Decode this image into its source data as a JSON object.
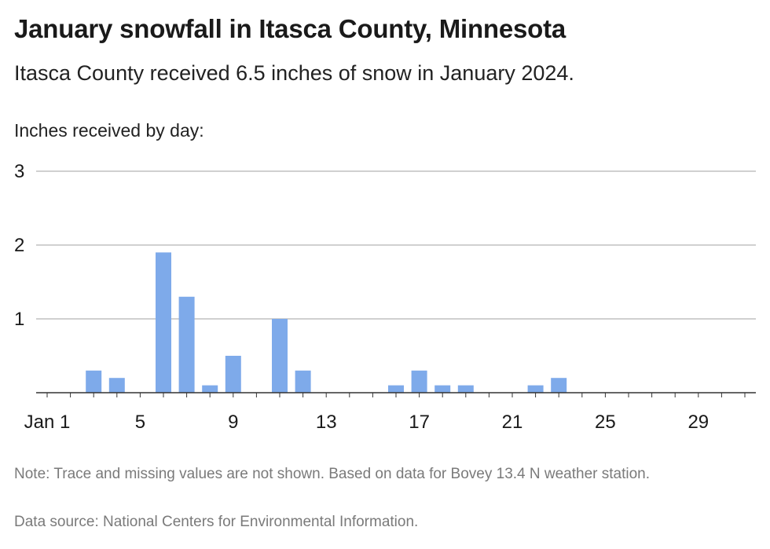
{
  "header": {
    "title": "January snowfall in Itasca County, Minnesota",
    "subtitle": "Itasca County received 6.5 inches of snow in January 2024."
  },
  "footer": {
    "note": "Note: Trace and missing values are not shown. Based on data for Bovey 13.4 N weather station.",
    "source": "Data source: National Centers for Environmental Information."
  },
  "colors": {
    "bar": "#7eaaea",
    "grid": "#b3b3b3",
    "axis": "#333333"
  },
  "chart_data": {
    "type": "bar",
    "title": "January snowfall in Itasca County, Minnesota",
    "subtitle": "Itasca County received 6.5 inches of snow in January 2024.",
    "ylabel": "Inches received by day:",
    "xlabel": "",
    "ylim": [
      0,
      3
    ],
    "xlim": [
      1,
      31
    ],
    "y_ticks": [
      1,
      2,
      3
    ],
    "x_ticks": [
      {
        "day": 1,
        "label": "Jan 1"
      },
      {
        "day": 5,
        "label": "5"
      },
      {
        "day": 9,
        "label": "9"
      },
      {
        "day": 13,
        "label": "13"
      },
      {
        "day": 17,
        "label": "17"
      },
      {
        "day": 21,
        "label": "21"
      },
      {
        "day": 25,
        "label": "25"
      },
      {
        "day": 29,
        "label": "29"
      }
    ],
    "grid": true,
    "legend": "none",
    "data": [
      {
        "day": 3,
        "value": 0.3
      },
      {
        "day": 4,
        "value": 0.2
      },
      {
        "day": 6,
        "value": 1.9
      },
      {
        "day": 7,
        "value": 1.3
      },
      {
        "day": 8,
        "value": 0.1
      },
      {
        "day": 9,
        "value": 0.5
      },
      {
        "day": 11,
        "value": 1.0
      },
      {
        "day": 12,
        "value": 0.3
      },
      {
        "day": 16,
        "value": 0.1
      },
      {
        "day": 17,
        "value": 0.3
      },
      {
        "day": 18,
        "value": 0.1
      },
      {
        "day": 19,
        "value": 0.1
      },
      {
        "day": 22,
        "value": 0.1
      },
      {
        "day": 23,
        "value": 0.2
      }
    ]
  }
}
